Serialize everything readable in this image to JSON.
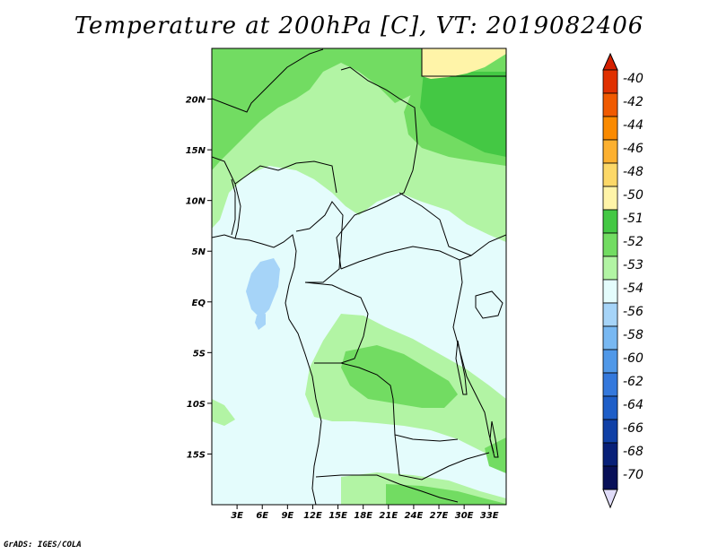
{
  "title": "Temperature at 200hPa [C], VT: 2019082406",
  "credit": "GrADS: IGES/COLA",
  "map": {
    "variable": "Temperature",
    "level": "200hPa",
    "units": "C",
    "valid_time": "2019082406",
    "lon_range": [
      0,
      35
    ],
    "lat_range": [
      -20,
      25
    ],
    "lon_ticks": [
      {
        "value": 3,
        "label": "3E"
      },
      {
        "value": 6,
        "label": "6E"
      },
      {
        "value": 9,
        "label": "9E"
      },
      {
        "value": 12,
        "label": "12E"
      },
      {
        "value": 15,
        "label": "15E"
      },
      {
        "value": 18,
        "label": "18E"
      },
      {
        "value": 21,
        "label": "21E"
      },
      {
        "value": 24,
        "label": "24E"
      },
      {
        "value": 27,
        "label": "27E"
      },
      {
        "value": 30,
        "label": "30E"
      },
      {
        "value": 33,
        "label": "33E"
      }
    ],
    "lat_ticks": [
      {
        "value": 20,
        "label": "20N"
      },
      {
        "value": 15,
        "label": "15N"
      },
      {
        "value": 10,
        "label": "10N"
      },
      {
        "value": 5,
        "label": "5N"
      },
      {
        "value": 0,
        "label": "EQ"
      },
      {
        "value": -5,
        "label": "5S"
      },
      {
        "value": -10,
        "label": "10S"
      },
      {
        "value": -15,
        "label": "15S"
      }
    ]
  },
  "colorbar": {
    "top_arrow_color": "#d42000",
    "bottom_arrow_color": "#e0dcf8",
    "bins": [
      {
        "label": "-40",
        "color": "#e03000"
      },
      {
        "label": "-42",
        "color": "#f05a00"
      },
      {
        "label": "-44",
        "color": "#fa8a00"
      },
      {
        "label": "-46",
        "color": "#fcb030"
      },
      {
        "label": "-48",
        "color": "#fcd868"
      },
      {
        "label": "-50",
        "color": "#fff4a8"
      },
      {
        "label": "-51",
        "color": "#44c844"
      },
      {
        "label": "-52",
        "color": "#72dc62"
      },
      {
        "label": "-53",
        "color": "#b2f4a4"
      },
      {
        "label": "-54",
        "color": "#e4fcfc"
      },
      {
        "label": "-56",
        "color": "#a6d4f8"
      },
      {
        "label": "-58",
        "color": "#78b8f2"
      },
      {
        "label": "-60",
        "color": "#5098e8"
      },
      {
        "label": "-62",
        "color": "#3478dc"
      },
      {
        "label": "-64",
        "color": "#1e5ec8"
      },
      {
        "label": "-66",
        "color": "#1040a6"
      },
      {
        "label": "-68",
        "color": "#082078"
      },
      {
        "label": "-70",
        "color": "#081058"
      }
    ]
  }
}
